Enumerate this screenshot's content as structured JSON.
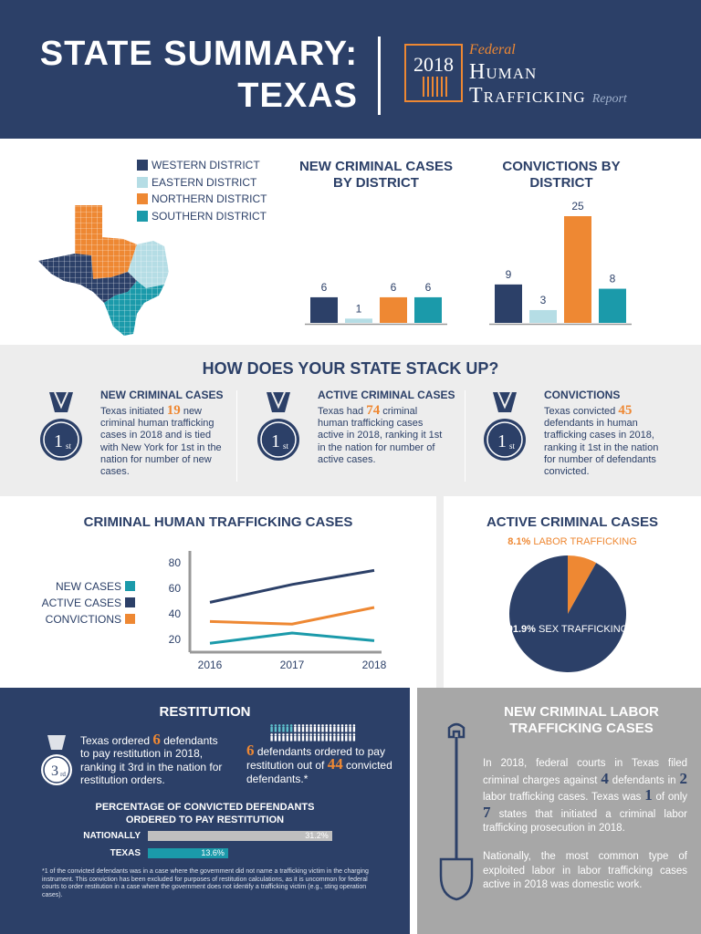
{
  "header": {
    "title_line1": "STATE SUMMARY:",
    "title_line2": "TEXAS",
    "logo_year": "2018",
    "logo_federal": "Federal",
    "logo_human": "Human",
    "logo_trafficking": "Trafficking",
    "logo_report": "Report"
  },
  "legend": {
    "items": [
      {
        "label": "WESTERN DISTRICT",
        "color": "#2c4068"
      },
      {
        "label": "EASTERN DISTRICT",
        "color": "#b5dde5"
      },
      {
        "label": "NORTHERN DISTRICT",
        "color": "#ee8833"
      },
      {
        "label": "SOUTHERN DISTRICT",
        "color": "#1b9aaa"
      }
    ]
  },
  "chart_data": [
    {
      "type": "bar",
      "title": "NEW CRIMINAL CASES BY DISTRICT",
      "categories": [
        "Western",
        "Eastern",
        "Northern",
        "Southern"
      ],
      "values": [
        6,
        1,
        6,
        6
      ],
      "colors": [
        "#2c4068",
        "#b5dde5",
        "#ee8833",
        "#1b9aaa"
      ]
    },
    {
      "type": "bar",
      "title": "CONVICTIONS BY DISTRICT",
      "categories": [
        "Western",
        "Eastern",
        "Northern",
        "Southern"
      ],
      "values": [
        9,
        3,
        25,
        8
      ],
      "colors": [
        "#2c4068",
        "#b5dde5",
        "#ee8833",
        "#1b9aaa"
      ]
    },
    {
      "type": "line",
      "title": "CRIMINAL HUMAN TRAFFICKING CASES",
      "x": [
        "2016",
        "2017",
        "2018"
      ],
      "ylim": [
        10,
        85
      ],
      "yticks": [
        20,
        40,
        60,
        80
      ],
      "legend": "left",
      "series": [
        {
          "name": "NEW CASES",
          "values": [
            17,
            25,
            19
          ],
          "color": "#1b9aaa"
        },
        {
          "name": "ACTIVE CASES",
          "values": [
            49,
            63,
            74
          ],
          "color": "#2c4068"
        },
        {
          "name": "CONVICTIONS",
          "values": [
            34,
            32,
            45
          ],
          "color": "#ee8833"
        }
      ]
    },
    {
      "type": "pie",
      "title": "ACTIVE CRIMINAL CASES",
      "slices": [
        {
          "label": "LABOR TRAFFICKING",
          "pct_text": "8.1%",
          "value": 8.1,
          "color": "#ee8833"
        },
        {
          "label": "SEX TRAFFICKING",
          "pct_text": "91.9%",
          "value": 91.9,
          "color": "#2c4068"
        }
      ]
    }
  ],
  "stack": {
    "heading": "HOW DOES YOUR STATE STACK UP?",
    "items": [
      {
        "title": "NEW CRIMINAL CASES",
        "rank": "1",
        "rank_suffix": "st",
        "pre": "Texas initiated ",
        "num": "19",
        "post": " new criminal human trafficking cases in 2018 and is tied with New York for 1st in the nation for number of new cases."
      },
      {
        "title": "ACTIVE CRIMINAL CASES",
        "rank": "1",
        "rank_suffix": "st",
        "pre": "Texas had ",
        "num": "74",
        "post": " criminal human trafficking cases active in 2018, ranking it 1st in the nation for number of active cases."
      },
      {
        "title": "CONVICTIONS",
        "rank": "1",
        "rank_suffix": "st",
        "pre": "Texas convicted ",
        "num": "45",
        "post": " defendants in human trafficking cases in 2018, ranking it 1st in the nation for number of defendants convicted."
      }
    ]
  },
  "restitution": {
    "heading": "RESTITUTION",
    "rank": "3",
    "rank_suffix": "rd",
    "left_pre": "Texas ordered ",
    "left_num": "6",
    "left_post": " defendants to pay restitution in 2018, ranking it 3rd in the nation for restitution orders.",
    "right_num1": "6",
    "right_mid": " defendants ordered to pay restitution out of ",
    "right_num2": "44",
    "right_post": " convicted defendants.*",
    "icon_total": 44,
    "icon_highlight": 6,
    "pct_heading_1": "PERCENTAGE OF CONVICTED DEFENDANTS",
    "pct_heading_2": "ORDERED TO PAY RESTITUTION",
    "national_label": "NATIONALLY",
    "national_value": "31.2%",
    "national_pct": 31.2,
    "texas_label": "TEXAS",
    "texas_value": "13.6%",
    "texas_pct": 13.6,
    "footnote": "*1 of the convicted defendants was in a case where the government did not name a trafficking victim in the charging instrument. This conviction has been excluded for purposes of restitution calculations, as it is uncommon for federal courts to order restitution in a case where the government does not identify a trafficking victim (e.g., sting operation cases)."
  },
  "labor": {
    "heading": "NEW CRIMINAL LABOR TRAFFICKING CASES",
    "p1_a": "In 2018, federal courts in Texas filed criminal charges against ",
    "p1_n1": "4",
    "p1_b": " defendants in ",
    "p1_n2": "2",
    "p1_c": " labor trafficking cases. Texas was ",
    "p1_n3": "1",
    "p1_d": " of only ",
    "p1_n4": "7",
    "p1_e": " states that initiated a criminal labor trafficking prosecution in 2018.",
    "p2": "Nationally, the most common type of exploited labor in labor trafficking cases active in 2018 was domestic work."
  }
}
